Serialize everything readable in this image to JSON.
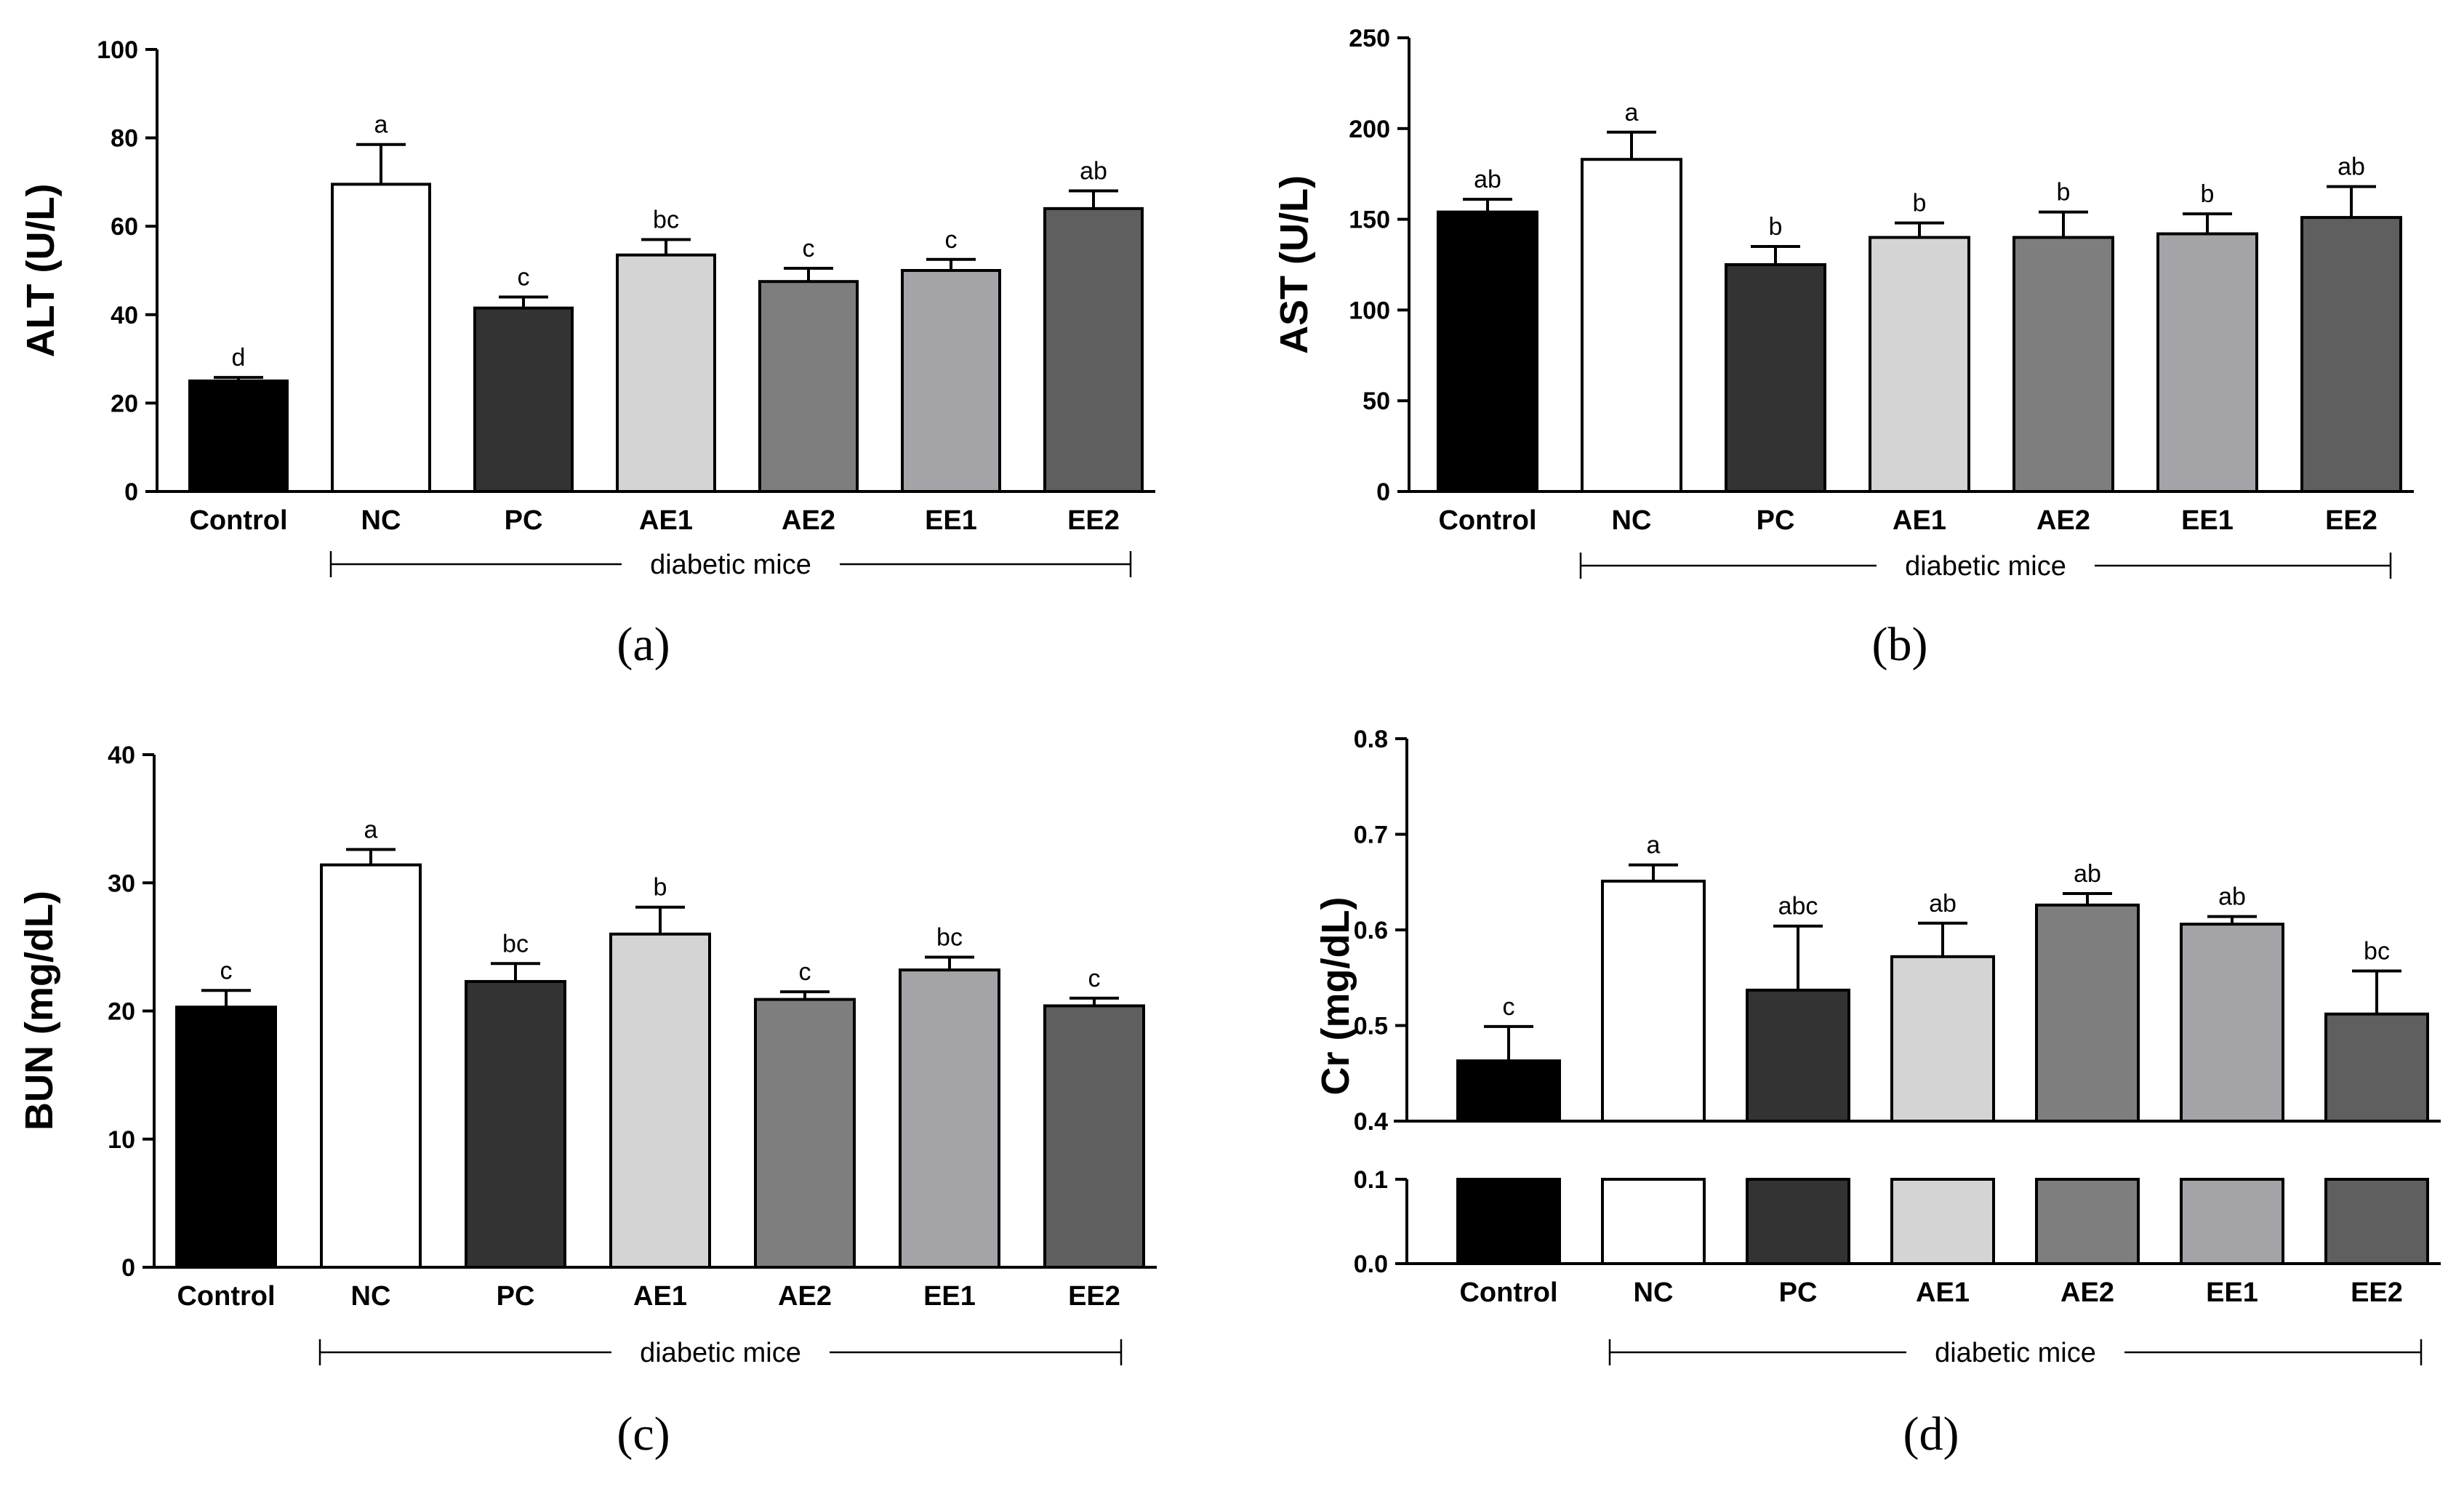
{
  "chart_data": [
    {
      "panel": "(a)",
      "type": "bar",
      "ylabel": "ALT (U/L)",
      "ylim": [
        0,
        100
      ],
      "yticks": [
        0,
        20,
        40,
        60,
        80,
        100
      ],
      "categories": [
        "Control",
        "NC",
        "PC",
        "AE1",
        "AE2",
        "EE1",
        "EE2"
      ],
      "values": [
        25,
        69.5,
        41.5,
        53.5,
        47.5,
        50,
        64
      ],
      "errors": [
        0.8,
        9,
        2.5,
        3.5,
        3,
        2.5,
        4
      ],
      "significance": [
        "d",
        "a",
        "c",
        "bc",
        "c",
        "c",
        "ab"
      ],
      "colors": [
        "#000000",
        "#ffffff",
        "#333333",
        "#d4d4d4",
        "#7e7e7e",
        "#a3a3a8",
        "#5f5f5f"
      ],
      "group_label": "diabetic mice"
    },
    {
      "panel": "(b)",
      "type": "bar",
      "ylabel": "AST (U/L)",
      "ylim": [
        0,
        250
      ],
      "yticks": [
        0,
        50,
        100,
        150,
        200,
        250
      ],
      "categories": [
        "Control",
        "NC",
        "PC",
        "AE1",
        "AE2",
        "EE1",
        "EE2"
      ],
      "values": [
        154,
        183,
        125,
        140,
        140,
        142,
        151
      ],
      "errors": [
        7,
        15,
        10,
        8,
        14,
        11,
        17
      ],
      "significance": [
        "ab",
        "a",
        "b",
        "b",
        "b",
        "b",
        "ab"
      ],
      "colors": [
        "#000000",
        "#ffffff",
        "#333333",
        "#d4d4d4",
        "#7e7e7e",
        "#a3a3a8",
        "#5f5f5f"
      ],
      "group_label": "diabetic mice"
    },
    {
      "panel": "(c)",
      "type": "bar",
      "ylabel": "BUN (mg/dL)",
      "ylim": [
        0,
        40
      ],
      "yticks": [
        0,
        10,
        20,
        30,
        40
      ],
      "categories": [
        "Control",
        "NC",
        "PC",
        "AE1",
        "AE2",
        "EE1",
        "EE2"
      ],
      "values": [
        20.3,
        31.4,
        22.3,
        26,
        20.9,
        23.2,
        20.4
      ],
      "errors": [
        1.3,
        1.2,
        1.4,
        2.1,
        0.6,
        1,
        0.6
      ],
      "significance": [
        "c",
        "a",
        "bc",
        "b",
        "c",
        "bc",
        "c"
      ],
      "colors": [
        "#000000",
        "#ffffff",
        "#333333",
        "#d4d4d4",
        "#7e7e7e",
        "#a3a3a8",
        "#5f5f5f"
      ],
      "group_label": "diabetic mice"
    },
    {
      "panel": "(d)",
      "type": "bar",
      "ylabel": "Cr (mg/dL)",
      "ylim": [
        0,
        0.8
      ],
      "axis_break": [
        0.1,
        0.4
      ],
      "yticks": [
        0.0,
        0.1,
        0.4,
        0.5,
        0.6,
        0.7,
        0.8
      ],
      "ytick_labels": [
        "0.0",
        "0.1",
        "0.4",
        "0.5",
        "0.6",
        "0.7",
        "0.8"
      ],
      "categories": [
        "Control",
        "NC",
        "PC",
        "AE1",
        "AE2",
        "EE1",
        "EE2"
      ],
      "values": [
        0.463,
        0.651,
        0.537,
        0.572,
        0.626,
        0.606,
        0.512
      ],
      "errors": [
        0.036,
        0.017,
        0.067,
        0.035,
        0.012,
        0.008,
        0.045
      ],
      "significance": [
        "c",
        "a",
        "abc",
        "ab",
        "ab",
        "ab",
        "bc"
      ],
      "colors": [
        "#000000",
        "#ffffff",
        "#333333",
        "#d4d4d4",
        "#7e7e7e",
        "#a3a3a8",
        "#5f5f5f"
      ],
      "group_label": "diabetic mice"
    }
  ]
}
